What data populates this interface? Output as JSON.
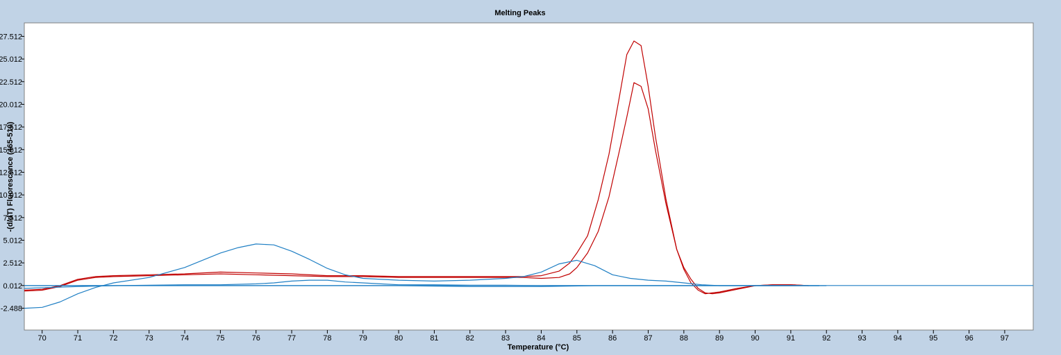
{
  "chart_data": {
    "type": "line",
    "title": "Melting Peaks",
    "xlabel": "Temperature (°C)",
    "ylabel": "-(d/dT) Fluorescence (465-510)",
    "xlim": [
      69.5,
      97.8
    ],
    "ylim": [
      -4.9,
      29.0
    ],
    "x_ticks": [
      70,
      71,
      72,
      73,
      74,
      75,
      76,
      77,
      78,
      79,
      80,
      81,
      82,
      83,
      84,
      85,
      86,
      87,
      88,
      89,
      90,
      91,
      92,
      93,
      94,
      95,
      96,
      97
    ],
    "x_tick_labels": [
      "70",
      "71",
      "72",
      "73",
      "74",
      "75",
      "76",
      "77",
      "78",
      "79",
      "80",
      "81",
      "82",
      "83",
      "84",
      "85",
      "86",
      "87",
      "88",
      "89",
      "90",
      "91",
      "92",
      "93",
      "94",
      "95",
      "96",
      "97"
    ],
    "y_ticks": [
      -2.488,
      0.012,
      2.512,
      5.012,
      7.512,
      10.012,
      12.512,
      15.012,
      17.512,
      20.012,
      22.512,
      25.012,
      27.512
    ],
    "y_tick_labels": [
      "-2.488",
      "0.012",
      "2.512",
      "5.012",
      "7.512",
      "10.012",
      "12.512",
      "15.012",
      "17.512",
      "20.012",
      "22.512",
      "25.012",
      "27.512"
    ],
    "grid": false,
    "series": [
      {
        "color": "#c00000",
        "x": [
          69.5,
          70.0,
          70.5,
          71.0,
          71.5,
          72.0,
          73.0,
          74.0,
          75.0,
          76.0,
          77.0,
          78.0,
          79.0,
          80.0,
          81.0,
          82.0,
          83.0,
          83.5,
          84.0,
          84.5,
          84.8,
          85.0,
          85.3,
          85.6,
          85.9,
          86.2,
          86.4,
          86.6,
          86.8,
          87.0,
          87.2,
          87.5,
          87.8,
          88.0,
          88.2,
          88.4,
          88.6,
          88.8,
          89.0,
          89.5,
          90.0,
          90.5,
          91.0,
          91.5
        ],
        "y": [
          -0.6,
          -0.5,
          -0.1,
          0.6,
          0.9,
          1.0,
          1.1,
          1.2,
          1.3,
          1.2,
          1.1,
          1.0,
          1.0,
          0.9,
          0.9,
          0.9,
          0.9,
          0.9,
          0.8,
          0.9,
          1.3,
          2.0,
          3.6,
          6.0,
          9.8,
          15.0,
          18.6,
          22.4,
          22.0,
          19.5,
          15.0,
          9.0,
          4.0,
          2.0,
          0.7,
          -0.3,
          -0.8,
          -0.9,
          -0.8,
          -0.4,
          0.0,
          0.1,
          0.1,
          0.0
        ]
      },
      {
        "color": "#c00000",
        "x": [
          69.5,
          70.0,
          70.5,
          71.0,
          71.5,
          72.0,
          73.0,
          74.0,
          75.0,
          76.0,
          77.0,
          78.0,
          79.0,
          80.0,
          81.0,
          82.0,
          83.0,
          83.5,
          84.0,
          84.5,
          84.8,
          85.0,
          85.3,
          85.6,
          85.9,
          86.2,
          86.4,
          86.6,
          86.8,
          87.0,
          87.2,
          87.5,
          87.8,
          88.0,
          88.2,
          88.4,
          88.6,
          88.8,
          89.0,
          89.5,
          90.0,
          90.5,
          91.0,
          91.5
        ],
        "y": [
          -0.5,
          -0.4,
          0.0,
          0.7,
          1.0,
          1.1,
          1.2,
          1.3,
          1.5,
          1.4,
          1.3,
          1.1,
          1.1,
          1.0,
          1.0,
          1.0,
          1.0,
          1.0,
          1.1,
          1.6,
          2.5,
          3.6,
          5.5,
          9.5,
          14.5,
          21.0,
          25.5,
          27.0,
          26.5,
          22.0,
          16.5,
          9.5,
          4.0,
          1.8,
          0.3,
          -0.5,
          -0.9,
          -0.8,
          -0.7,
          -0.3,
          0.0,
          0.1,
          0.1,
          0.0
        ]
      },
      {
        "color": "#1f7fc4",
        "x": [
          69.5,
          70.0,
          70.5,
          71.0,
          71.5,
          72.0,
          73.0,
          74.0,
          75.0,
          75.5,
          76.0,
          76.5,
          77.0,
          77.5,
          78.0,
          78.5,
          79.0,
          80.0,
          81.0,
          82.0,
          83.0,
          83.5,
          84.0,
          84.5,
          85.0,
          85.5,
          86.0,
          86.5,
          87.0,
          87.5,
          88.0,
          88.5,
          89.0,
          90.0,
          91.0,
          91.8
        ],
        "y": [
          -2.5,
          -2.4,
          -1.8,
          -0.9,
          -0.2,
          0.3,
          0.9,
          2.0,
          3.6,
          4.2,
          4.6,
          4.5,
          3.8,
          2.9,
          1.9,
          1.2,
          0.8,
          0.6,
          0.5,
          0.6,
          0.8,
          1.0,
          1.5,
          2.4,
          2.8,
          2.2,
          1.2,
          0.8,
          0.6,
          0.5,
          0.3,
          0.1,
          0.0,
          0.0,
          0.0,
          0.0
        ]
      },
      {
        "color": "#1f7fc4",
        "x": [
          69.5,
          71.0,
          72.0,
          73.0,
          74.0,
          75.0,
          76.0,
          76.5,
          77.0,
          77.5,
          78.0,
          78.5,
          79.0,
          79.5,
          80.0,
          81.0,
          82.0,
          83.0,
          84.0,
          85.0,
          86.0,
          87.0,
          88.0,
          89.0,
          90.0,
          91.0,
          91.8
        ],
        "y": [
          -0.3,
          -0.1,
          0.0,
          0.05,
          0.1,
          0.1,
          0.2,
          0.3,
          0.5,
          0.6,
          0.6,
          0.4,
          0.3,
          0.2,
          0.1,
          0.1,
          0.05,
          0.05,
          0.0,
          0.0,
          0.0,
          0.0,
          0.0,
          0.0,
          0.0,
          0.0,
          0.0
        ]
      },
      {
        "color": "#1f7fc4",
        "x": [
          69.5,
          75.0,
          80.0,
          82.0,
          84.0,
          85.5,
          88.0,
          90.0,
          92.0
        ],
        "y": [
          0.0,
          0.0,
          0.0,
          -0.1,
          -0.1,
          0.0,
          0.0,
          0.0,
          0.0
        ]
      },
      {
        "color": "#1f7fc4",
        "x": [
          69.5,
          97.8
        ],
        "y": [
          0.012,
          0.012
        ]
      }
    ]
  }
}
